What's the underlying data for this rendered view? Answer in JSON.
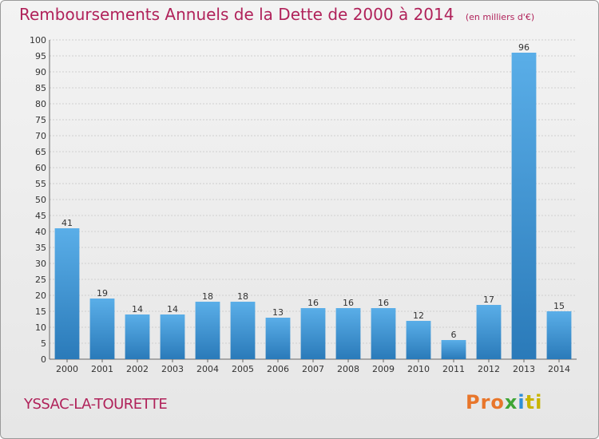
{
  "title": "Remboursements Annuels de la Dette de 2000 à 2014",
  "subtitle": "(en milliers d'€)",
  "commune": "YSSAC-LA-TOURETTE",
  "logo": {
    "parts": [
      "Pro",
      "x",
      "i",
      "ti"
    ]
  },
  "colors": {
    "title": "#b0225a",
    "bar_light": "#5aaee8",
    "bar_dark": "#2a7ab9"
  },
  "chart_data": {
    "type": "bar",
    "title": "Remboursements Annuels de la Dette de 2000 à 2014",
    "xlabel": "",
    "ylabel": "",
    "categories": [
      "2000",
      "2001",
      "2002",
      "2003",
      "2004",
      "2005",
      "2006",
      "2007",
      "2008",
      "2009",
      "2010",
      "2011",
      "2012",
      "2013",
      "2014"
    ],
    "values": [
      41,
      19,
      14,
      14,
      18,
      18,
      13,
      16,
      16,
      16,
      12,
      6,
      17,
      96,
      15
    ],
    "ylim": [
      0,
      100
    ],
    "ytick_step": 5,
    "grid": true,
    "legend": "none"
  }
}
